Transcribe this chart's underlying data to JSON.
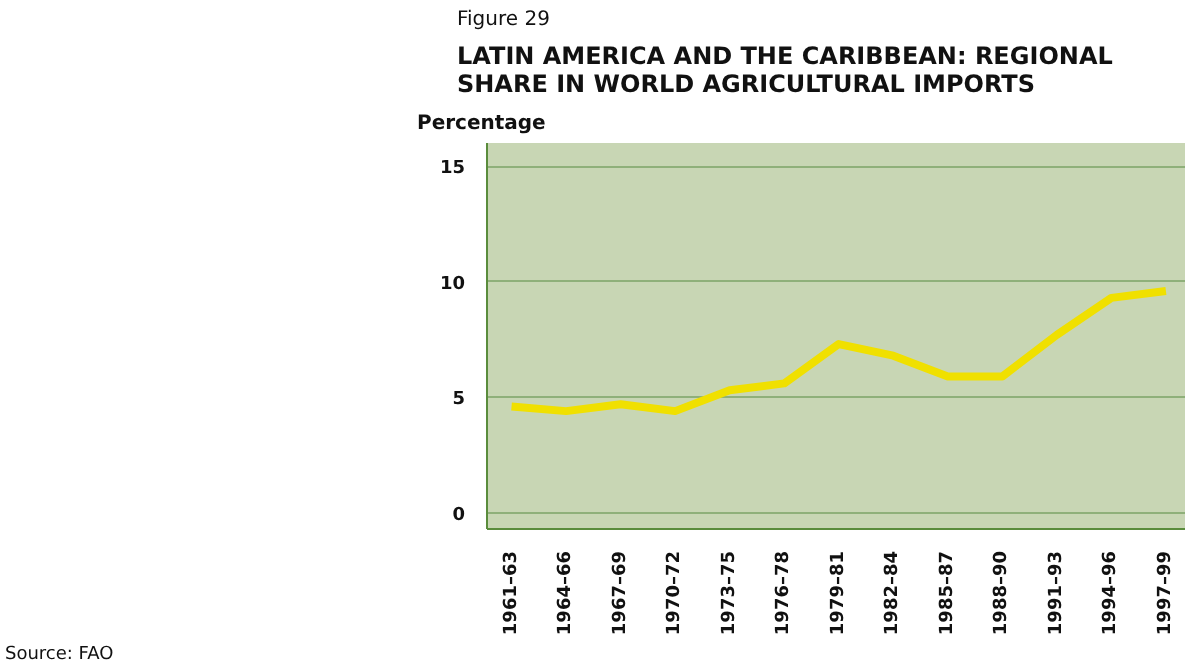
{
  "chart_data": {
    "type": "line",
    "subtitle": "Figure 29",
    "title": "LATIN AMERICA AND THE CARIBBEAN: REGIONAL SHARE IN WORLD AGRICULTURAL IMPORTS",
    "ylabel": "Percentage",
    "categories": [
      "1961–63",
      "1964–66",
      "1967–69",
      "1970–72",
      "1973–75",
      "1976–78",
      "1979–81",
      "1982–84",
      "1985–87",
      "1988–90",
      "1991–93",
      "1994–96",
      "1997–99"
    ],
    "series": [
      {
        "color": "#f0e000",
        "values": [
          4.6,
          4.4,
          4.7,
          4.4,
          5.3,
          5.6,
          7.3,
          6.8,
          5.9,
          5.9,
          7.7,
          9.3,
          9.6
        ]
      }
    ],
    "ylim": [
      -0.7,
      16
    ],
    "yticks": [
      0,
      5,
      10,
      15
    ],
    "grid": "y",
    "marker": "none",
    "line_style": "solid",
    "annotations": [
      "Source: FAO"
    ]
  }
}
